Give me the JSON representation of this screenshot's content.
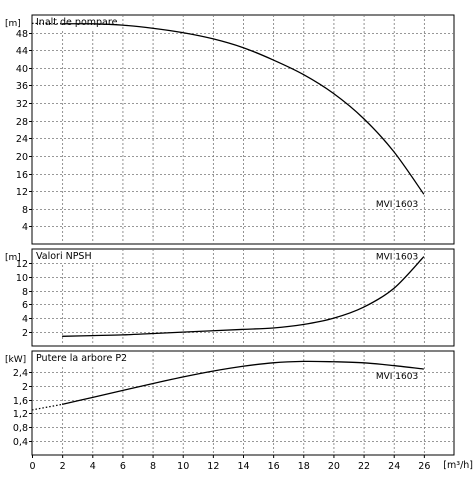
{
  "x_axis": {
    "unit": "[m³/h]",
    "ticks": [
      "0",
      "2",
      "4",
      "6",
      "8",
      "10",
      "12",
      "14",
      "16",
      "18",
      "20",
      "22",
      "24",
      "26"
    ],
    "min": 0,
    "max": 28
  },
  "chart_data": [
    {
      "type": "line",
      "title": "Inalt de pompare",
      "ylabel": "[m]",
      "ylim": [
        0,
        52
      ],
      "yticks": [
        "4",
        "8",
        "12",
        "16",
        "20",
        "24",
        "28",
        "32",
        "36",
        "40",
        "44",
        "48"
      ],
      "xlim": [
        0,
        28
      ],
      "grid": true,
      "series": [
        {
          "name": "MVI 1603",
          "x": [
            2,
            4,
            6,
            8,
            10,
            12,
            14,
            16,
            18,
            20,
            22,
            24,
            26
          ],
          "y": [
            50.0,
            50.0,
            49.7,
            49.0,
            48.0,
            46.6,
            44.6,
            41.8,
            38.5,
            34.2,
            28.5,
            21.0,
            11.3
          ]
        }
      ],
      "extrapolated": {
        "x": [
          0,
          2
        ],
        "y": [
          50.1,
          50.0
        ]
      }
    },
    {
      "type": "line",
      "title": "Valori NPSH",
      "ylabel": "[m]",
      "ylim": [
        0,
        14
      ],
      "yticks": [
        "2",
        "4",
        "6",
        "8",
        "10",
        "12"
      ],
      "xlim": [
        0,
        28
      ],
      "grid": true,
      "series": [
        {
          "name": "MVI 1603",
          "x": [
            2,
            4,
            6,
            8,
            10,
            12,
            14,
            16,
            18,
            20,
            22,
            24,
            26
          ],
          "y": [
            1.4,
            1.5,
            1.6,
            1.8,
            2.0,
            2.2,
            2.4,
            2.6,
            3.1,
            4.0,
            5.6,
            8.3,
            12.9
          ]
        }
      ]
    },
    {
      "type": "line",
      "title": "Putere la arbore P2",
      "ylabel": "[kW]",
      "ylim": [
        0,
        3.0
      ],
      "yticks": [
        "0,4",
        "0,8",
        "1,2",
        "1,6",
        "2",
        "2,4"
      ],
      "xlim": [
        0,
        28
      ],
      "grid": true,
      "series": [
        {
          "name": "MVI 1603",
          "x": [
            2,
            4,
            6,
            8,
            10,
            12,
            14,
            16,
            18,
            20,
            22,
            24,
            26
          ],
          "y": [
            1.46,
            1.66,
            1.86,
            2.06,
            2.25,
            2.42,
            2.56,
            2.66,
            2.7,
            2.69,
            2.66,
            2.58,
            2.48
          ]
        }
      ],
      "extrapolated": {
        "x": [
          0,
          2
        ],
        "y": [
          1.3,
          1.46
        ]
      }
    }
  ]
}
